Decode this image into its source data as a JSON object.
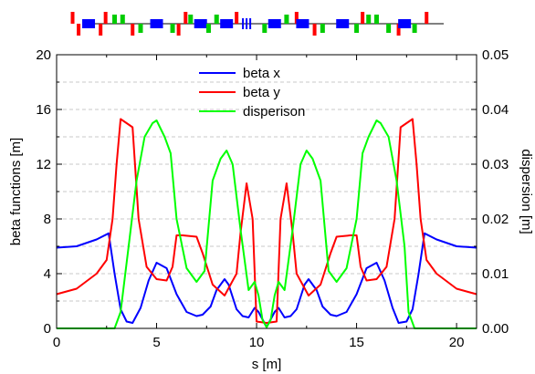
{
  "chart_data": {
    "type": "line",
    "xlabel": "s [m]",
    "ylabel_left": "beta functions [m]",
    "ylabel_right": "dispersion [m]",
    "xlim": [
      0,
      21
    ],
    "ylim_left": [
      0,
      20
    ],
    "ylim_right": [
      0,
      0.05
    ],
    "x_ticks": [
      "0",
      "5",
      "10",
      "15",
      "20"
    ],
    "y_left_ticks": [
      "0",
      "4",
      "8",
      "12",
      "16",
      "20"
    ],
    "y_right_ticks": [
      "0.00",
      "0.01",
      "0.02",
      "0.03",
      "0.04",
      "0.05"
    ],
    "grid": "dashed horizontal",
    "legend_position": "top-center",
    "series": [
      {
        "name": "beta x",
        "axis": "left",
        "color": "#0000ff",
        "x": [
          0,
          1,
          2,
          2.6,
          2.9,
          3.2,
          3.5,
          3.8,
          4.2,
          4.6,
          5.0,
          5.5,
          6.0,
          6.5,
          7.0,
          7.3,
          7.7,
          8.0,
          8.4,
          8.6,
          9.0,
          9.3,
          9.6,
          9.9,
          10.1,
          10.5,
          10.9,
          11.1,
          11.4,
          11.7,
          12.0,
          12.4,
          12.6,
          13.0,
          13.3,
          13.7,
          14.0,
          14.5,
          15.0,
          15.5,
          16.0,
          16.4,
          16.8,
          17.1,
          17.5,
          17.8,
          18.1,
          18.4,
          19,
          20,
          21
        ],
        "values": [
          5.9,
          6.0,
          6.5,
          6.95,
          4.0,
          1.4,
          0.5,
          0.4,
          1.5,
          3.5,
          4.8,
          4.4,
          2.5,
          1.2,
          0.9,
          1.0,
          1.6,
          2.8,
          3.6,
          3.2,
          1.4,
          0.9,
          0.8,
          1.5,
          1.2,
          0.1,
          1.2,
          1.5,
          0.8,
          0.9,
          1.4,
          3.2,
          3.6,
          2.8,
          1.6,
          1.0,
          0.9,
          1.2,
          2.5,
          4.4,
          4.8,
          3.5,
          1.5,
          0.4,
          0.5,
          1.4,
          4.0,
          6.95,
          6.5,
          6.0,
          5.9
        ]
      },
      {
        "name": "beta y",
        "axis": "left",
        "color": "#ff0000",
        "x": [
          0,
          1,
          2,
          2.5,
          2.8,
          3.0,
          3.2,
          3.5,
          3.8,
          4.1,
          4.5,
          5.0,
          5.5,
          5.8,
          6.0,
          6.3,
          7.0,
          7.3,
          7.8,
          8.4,
          9.0,
          9.2,
          9.5,
          9.8,
          10.0,
          10.5,
          11.0,
          11.2,
          11.5,
          11.8,
          12.0,
          12.6,
          13.2,
          13.7,
          14.0,
          14.7,
          15.0,
          15.2,
          15.5,
          16.0,
          16.5,
          16.9,
          17.2,
          17.5,
          17.8,
          18.0,
          18.2,
          18.5,
          19,
          20,
          21
        ],
        "values": [
          2.5,
          2.9,
          4.0,
          5.0,
          8.0,
          12.0,
          15.3,
          15.0,
          14.7,
          8.0,
          4.5,
          3.6,
          3.5,
          4.5,
          6.8,
          6.8,
          6.7,
          5.5,
          3.2,
          2.4,
          4.0,
          7.0,
          10.6,
          8.0,
          0.5,
          0.4,
          0.5,
          8.0,
          10.6,
          7.0,
          4.0,
          2.4,
          3.2,
          5.5,
          6.7,
          6.8,
          6.8,
          4.5,
          3.5,
          3.6,
          4.5,
          8.0,
          14.7,
          15.0,
          15.3,
          12.0,
          8.0,
          5.0,
          4.0,
          2.9,
          2.5
        ]
      },
      {
        "name": "disperison",
        "axis": "right",
        "color": "#00ff00",
        "x": [
          0,
          1,
          2,
          2.9,
          3.2,
          3.6,
          4.0,
          4.4,
          4.8,
          5.0,
          5.4,
          5.7,
          6.0,
          6.5,
          7.0,
          7.4,
          7.8,
          8.2,
          8.5,
          8.8,
          9.2,
          9.6,
          9.9,
          10.1,
          10.3,
          10.5,
          10.7,
          10.9,
          11.1,
          11.4,
          11.8,
          12.2,
          12.5,
          12.8,
          13.2,
          13.6,
          14.0,
          14.5,
          15.0,
          15.3,
          15.6,
          16.0,
          16.2,
          16.6,
          17.0,
          17.4,
          17.6,
          17.9,
          19,
          20,
          21
        ],
        "values": [
          0.0,
          0.0,
          0.0,
          0.0,
          0.003,
          0.015,
          0.027,
          0.035,
          0.0375,
          0.038,
          0.035,
          0.032,
          0.02,
          0.011,
          0.0085,
          0.0105,
          0.027,
          0.031,
          0.0325,
          0.03,
          0.018,
          0.007,
          0.0085,
          0.006,
          0.0015,
          0.0002,
          0.0015,
          0.006,
          0.0085,
          0.007,
          0.018,
          0.03,
          0.0325,
          0.031,
          0.027,
          0.0105,
          0.0085,
          0.011,
          0.02,
          0.032,
          0.035,
          0.038,
          0.0375,
          0.035,
          0.027,
          0.015,
          0.003,
          0.0,
          0.0,
          0.0,
          0.0
        ]
      }
    ]
  },
  "lattice": {
    "magnets": [
      {
        "s": 0.8,
        "side": "up",
        "color": "#ff0000"
      },
      {
        "s": 1.1,
        "side": "down",
        "color": "#ff0000"
      },
      {
        "s": 1.6,
        "side": "box",
        "color": "#0000ff"
      },
      {
        "s": 2.2,
        "side": "down",
        "color": "#ff0000"
      },
      {
        "s": 2.45,
        "side": "up",
        "color": "#ff0000"
      },
      {
        "s": 2.9,
        "side": "up",
        "color": "#00cc00"
      },
      {
        "s": 3.3,
        "side": "up",
        "color": "#00cc00"
      },
      {
        "s": 3.8,
        "side": "down",
        "color": "#ff0000"
      },
      {
        "s": 4.2,
        "side": "down",
        "color": "#00cc00"
      },
      {
        "s": 5.0,
        "side": "box",
        "color": "#0000ff"
      },
      {
        "s": 5.8,
        "side": "down",
        "color": "#00cc00"
      },
      {
        "s": 6.1,
        "side": "down",
        "color": "#ff0000"
      },
      {
        "s": 6.45,
        "side": "up",
        "color": "#ff0000"
      },
      {
        "s": 6.7,
        "side": "up",
        "color": "#00cc00"
      },
      {
        "s": 7.2,
        "side": "box",
        "color": "#0000ff"
      },
      {
        "s": 7.6,
        "side": "down",
        "color": "#00cc00"
      },
      {
        "s": 8.0,
        "side": "up",
        "color": "#00cc00"
      },
      {
        "s": 8.5,
        "side": "box",
        "color": "#0000ff"
      },
      {
        "s": 9.0,
        "side": "up",
        "color": "#ff0000"
      },
      {
        "s": 9.5,
        "side": "bars",
        "color": "#0000ff"
      },
      {
        "s": 10.4,
        "side": "down",
        "color": "#00cc00"
      },
      {
        "s": 10.9,
        "side": "box",
        "color": "#0000ff"
      },
      {
        "s": 11.5,
        "side": "up",
        "color": "#00cc00"
      },
      {
        "s": 12.0,
        "side": "up",
        "color": "#ff0000"
      },
      {
        "s": 12.3,
        "side": "box",
        "color": "#0000ff"
      },
      {
        "s": 12.9,
        "side": "down",
        "color": "#ff0000"
      },
      {
        "s": 13.3,
        "side": "down",
        "color": "#00cc00"
      },
      {
        "s": 14.3,
        "side": "box",
        "color": "#0000ff"
      },
      {
        "s": 15.0,
        "side": "down",
        "color": "#00cc00"
      },
      {
        "s": 15.3,
        "side": "up",
        "color": "#ff0000"
      },
      {
        "s": 15.6,
        "side": "up",
        "color": "#00cc00"
      },
      {
        "s": 16.0,
        "side": "up",
        "color": "#00cc00"
      },
      {
        "s": 16.6,
        "side": "down",
        "color": "#00cc00"
      },
      {
        "s": 17.1,
        "side": "down",
        "color": "#ff0000"
      },
      {
        "s": 17.4,
        "side": "box",
        "color": "#0000ff"
      },
      {
        "s": 17.9,
        "side": "down",
        "color": "#00cc00"
      },
      {
        "s": 18.5,
        "side": "up",
        "color": "#ff0000"
      }
    ]
  }
}
